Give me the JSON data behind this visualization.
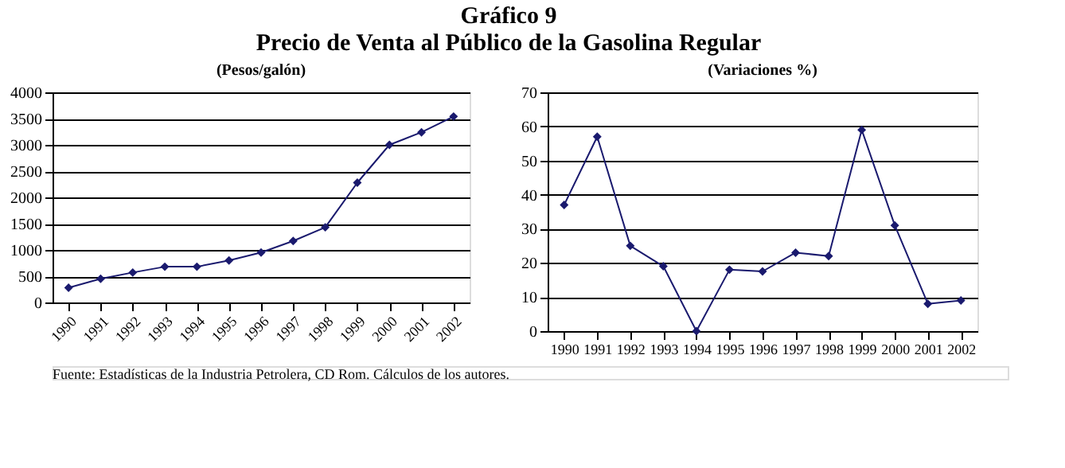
{
  "chart_data": [
    {
      "type": "line",
      "title": "(Pesos/galón)",
      "categories": [
        "1990",
        "1991",
        "1992",
        "1993",
        "1994",
        "1995",
        "1996",
        "1997",
        "1998",
        "1999",
        "2000",
        "2001",
        "2002"
      ],
      "series": [
        {
          "color": "#1a1a6e",
          "values": [
            280,
            450,
            570,
            680,
            680,
            800,
            950,
            1170,
            1430,
            2280,
            3000,
            3240,
            3540
          ]
        }
      ],
      "ylim": [
        0,
        4000
      ],
      "yticks": [
        0,
        500,
        1000,
        1500,
        2000,
        2500,
        3000,
        3500,
        4000
      ],
      "grid": "y",
      "marker": "diamond",
      "line_style": "solid",
      "annotations": [
        "Gráfico 9",
        "Precio de Venta al Público de la Gasolina Regular",
        "Fuente: Estadísticas de la Industria Petrolera, CD Rom. Cálculos de los autores."
      ]
    },
    {
      "type": "line",
      "title": "(Variaciones %)",
      "categories": [
        "1990",
        "1991",
        "1992",
        "1993",
        "1994",
        "1995",
        "1996",
        "1997",
        "1998",
        "1999",
        "2000",
        "2001",
        "2002"
      ],
      "series": [
        {
          "color": "#1a1a6e",
          "values": [
            37,
            57,
            25,
            19,
            0,
            18,
            17.5,
            23,
            22,
            59,
            31,
            8,
            9
          ]
        }
      ],
      "ylim": [
        0,
        70
      ],
      "yticks": [
        0,
        10,
        20,
        30,
        40,
        50,
        60,
        70
      ],
      "grid": "y",
      "marker": "diamond",
      "line_style": "solid"
    }
  ]
}
